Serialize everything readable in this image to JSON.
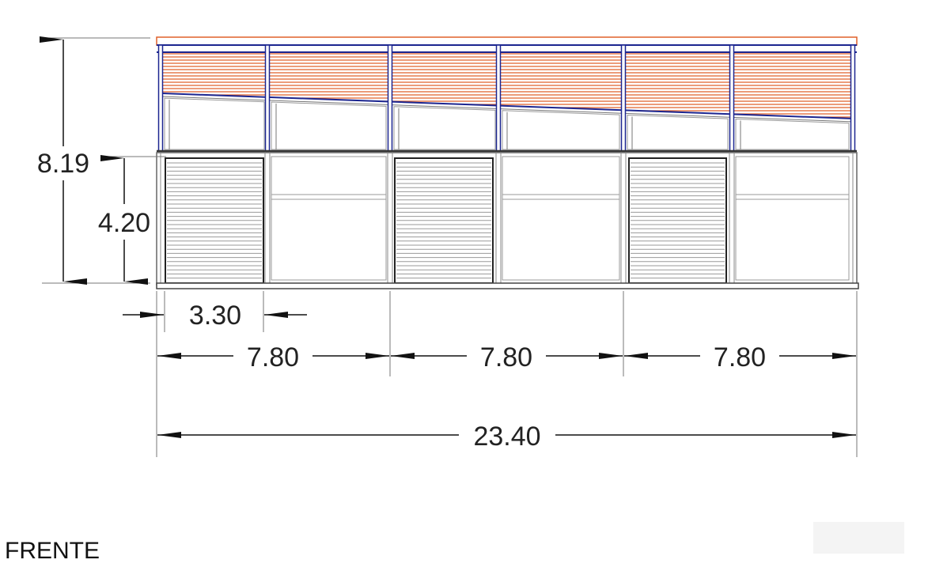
{
  "drawing": {
    "title": "FRENTE",
    "dimensions": {
      "total_height": "8.19",
      "lower_height": "4.20",
      "door_width": "3.30",
      "bay_1": "7.80",
      "bay_2": "7.80",
      "bay_3": "7.80",
      "total_width": "23.40"
    },
    "colors": {
      "roof_stripes": "#e0612a",
      "steel_frame": "#1c2690",
      "outline": "#555555",
      "dimension_lines": "#333333"
    }
  }
}
